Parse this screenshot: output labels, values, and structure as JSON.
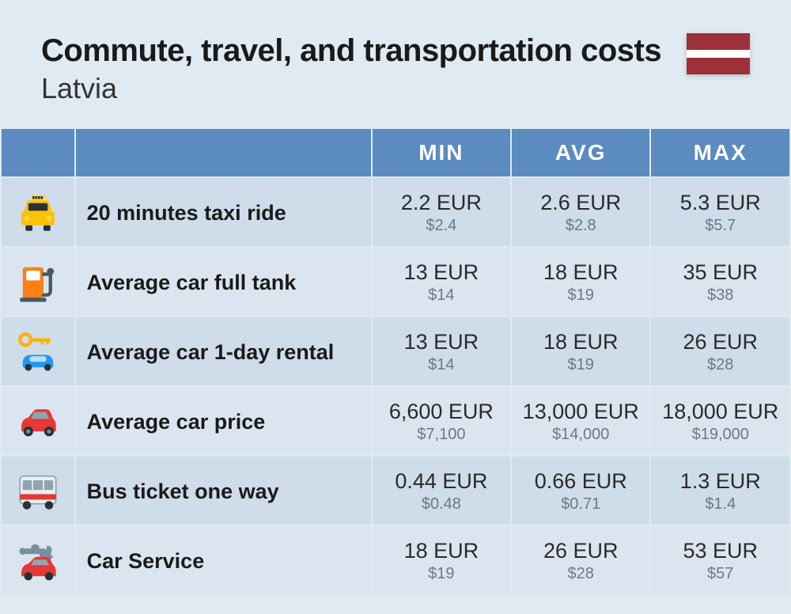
{
  "header": {
    "title": "Commute, travel, and transportation costs",
    "subtitle": "Latvia"
  },
  "flag": {
    "stripe1": "#9e3039",
    "stripe2": "#ffffff",
    "stripe3": "#9e3039"
  },
  "table": {
    "headers": {
      "min": "MIN",
      "avg": "AVG",
      "max": "MAX"
    },
    "header_bg": "#5b8bbf",
    "row_bg": "#cfdce9",
    "row_alt_bg": "#dbe5ef",
    "primary_color": "#2a2a2a",
    "secondary_color": "#6b7886",
    "label_color": "#1a1a1a"
  },
  "rows": [
    {
      "icon": "taxi-icon",
      "label": "20 minutes taxi ride",
      "min_eur": "2.2 EUR",
      "min_usd": "$2.4",
      "avg_eur": "2.6 EUR",
      "avg_usd": "$2.8",
      "max_eur": "5.3 EUR",
      "max_usd": "$5.7"
    },
    {
      "icon": "fuel-pump-icon",
      "label": "Average car full tank",
      "min_eur": "13 EUR",
      "min_usd": "$14",
      "avg_eur": "18 EUR",
      "avg_usd": "$19",
      "max_eur": "35 EUR",
      "max_usd": "$38"
    },
    {
      "icon": "car-key-icon",
      "label": "Average car 1-day rental",
      "min_eur": "13 EUR",
      "min_usd": "$14",
      "avg_eur": "18 EUR",
      "avg_usd": "$19",
      "max_eur": "26 EUR",
      "max_usd": "$28"
    },
    {
      "icon": "car-icon",
      "label": "Average car price",
      "min_eur": "6,600 EUR",
      "min_usd": "$7,100",
      "avg_eur": "13,000 EUR",
      "avg_usd": "$14,000",
      "max_eur": "18,000 EUR",
      "max_usd": "$19,000"
    },
    {
      "icon": "bus-icon",
      "label": "Bus ticket one way",
      "min_eur": "0.44 EUR",
      "min_usd": "$0.48",
      "avg_eur": "0.66 EUR",
      "avg_usd": "$0.71",
      "max_eur": "1.3 EUR",
      "max_usd": "$1.4"
    },
    {
      "icon": "car-service-icon",
      "label": "Car Service",
      "min_eur": "18 EUR",
      "min_usd": "$19",
      "avg_eur": "26 EUR",
      "avg_usd": "$28",
      "max_eur": "53 EUR",
      "max_usd": "$57"
    }
  ],
  "icons": {
    "taxi-icon": {
      "body": "#ffc107",
      "sign": "#ffd54f",
      "window": "#263238",
      "wheel": "#263238",
      "light": "#ffd54f"
    },
    "fuel-pump-icon": {
      "body": "#ff7f17",
      "window": "#ffffff",
      "nozzle": "#455a64"
    },
    "car-key-icon": {
      "car": "#2196f3",
      "window": "#bbdefb",
      "key": "#ffb300"
    },
    "car-icon": {
      "body": "#e53935",
      "window": "#90a4ae",
      "wheel": "#263238"
    },
    "bus-icon": {
      "body": "#eceff1",
      "window": "#90a4ae",
      "stripe": "#e53935",
      "wheel": "#263238"
    },
    "car-service-icon": {
      "car": "#e53935",
      "window": "#90a4ae",
      "wrench": "#78909c"
    }
  }
}
